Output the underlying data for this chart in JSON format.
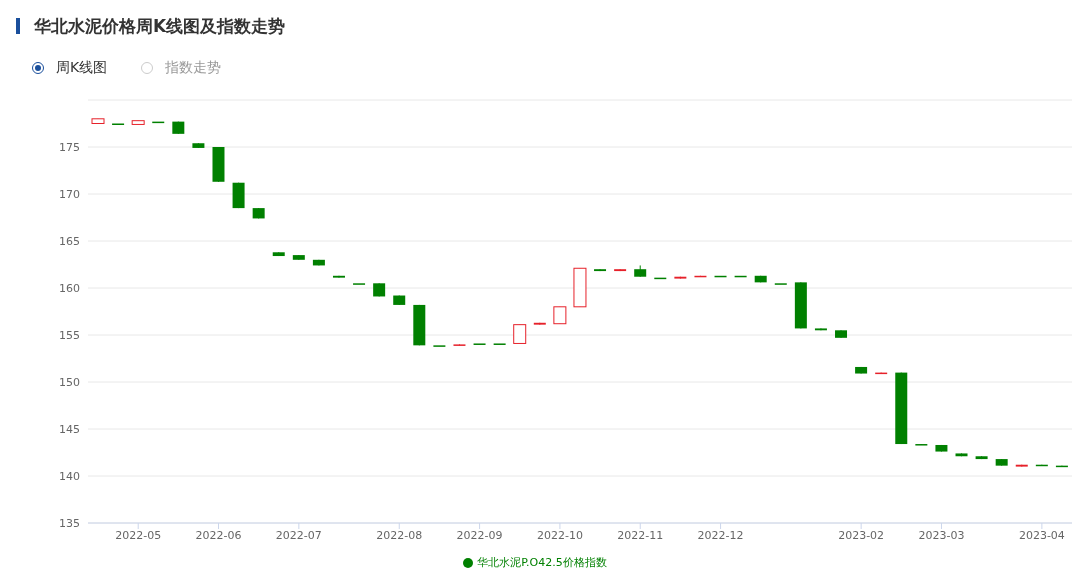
{
  "chart_data": {
    "type": "candlestick",
    "title": "华北水泥价格周K线图及指数走势",
    "annotations": [
      "周K线图",
      "指数走势"
    ],
    "categories": [
      null,
      null,
      "2022-05",
      null,
      null,
      null,
      "2022-06",
      null,
      null,
      null,
      "2022-07",
      null,
      null,
      null,
      null,
      "2022-08",
      null,
      null,
      null,
      "2022-09",
      null,
      null,
      null,
      "2022-10",
      null,
      null,
      null,
      "2022-11",
      null,
      null,
      null,
      "2022-12",
      null,
      null,
      null,
      null,
      null,
      null,
      "2023-02",
      null,
      null,
      null,
      "2023-03",
      null,
      null,
      null,
      null,
      "2023-04",
      null
    ],
    "series": [
      {
        "name": "华北水泥P.O42.5价格指数",
        "color": "#008000",
        "ohlc": [
          [
            177.5,
            178.0,
            177.5,
            178.0
          ],
          [
            177.5,
            177.5,
            177.5,
            177.5
          ],
          [
            177.4,
            177.8,
            177.4,
            177.8
          ],
          [
            177.7,
            177.7,
            177.7,
            177.7
          ],
          [
            177.7,
            177.7,
            176.4,
            176.4
          ],
          [
            175.4,
            175.4,
            174.9,
            174.9
          ],
          [
            175.0,
            175.0,
            171.3,
            171.3
          ],
          [
            171.2,
            171.2,
            168.5,
            168.5
          ],
          [
            168.5,
            168.5,
            167.4,
            167.4
          ],
          [
            163.8,
            163.8,
            163.4,
            163.4
          ],
          [
            163.5,
            163.5,
            163.0,
            163.0
          ],
          [
            163.0,
            163.0,
            162.4,
            162.4
          ],
          [
            161.3,
            161.3,
            161.1,
            161.1
          ],
          [
            160.5,
            160.5,
            160.5,
            160.5
          ],
          [
            160.5,
            160.5,
            159.1,
            159.1
          ],
          [
            159.2,
            159.2,
            158.2,
            158.2
          ],
          [
            158.2,
            158.2,
            153.9,
            153.9
          ],
          [
            153.9,
            153.9,
            153.9,
            153.9
          ],
          [
            153.9,
            154.0,
            153.9,
            154.0
          ],
          [
            154.1,
            154.1,
            154.1,
            154.1
          ],
          [
            154.1,
            154.1,
            154.1,
            154.1
          ],
          [
            154.1,
            156.1,
            154.1,
            156.1
          ],
          [
            156.1,
            156.3,
            156.1,
            156.3
          ],
          [
            156.2,
            158.0,
            156.2,
            158.0
          ],
          [
            158.0,
            162.1,
            158.0,
            162.1
          ],
          [
            162.0,
            162.0,
            161.8,
            161.8
          ],
          [
            161.8,
            162.0,
            161.8,
            162.0
          ],
          [
            162.0,
            162.4,
            161.2,
            161.2
          ],
          [
            161.1,
            161.1,
            161.1,
            161.1
          ],
          [
            161.0,
            161.2,
            161.0,
            161.2
          ],
          [
            161.2,
            161.3,
            161.2,
            161.3
          ],
          [
            161.3,
            161.3,
            161.3,
            161.3
          ],
          [
            161.3,
            161.3,
            161.3,
            161.3
          ],
          [
            161.3,
            161.3,
            160.6,
            160.6
          ],
          [
            160.5,
            160.5,
            160.5,
            160.5
          ],
          [
            160.6,
            160.6,
            155.7,
            155.7
          ],
          [
            155.7,
            155.7,
            155.5,
            155.5
          ],
          [
            155.5,
            155.5,
            154.7,
            154.7
          ],
          [
            151.6,
            151.6,
            150.9,
            150.9
          ],
          [
            150.9,
            151.0,
            150.9,
            151.0
          ],
          [
            151.0,
            151.0,
            143.4,
            143.4
          ],
          [
            143.4,
            143.4,
            143.3,
            143.3
          ],
          [
            143.3,
            143.3,
            142.6,
            142.6
          ],
          [
            142.4,
            142.4,
            142.1,
            142.1
          ],
          [
            142.1,
            142.1,
            141.8,
            141.8
          ],
          [
            141.8,
            141.8,
            141.1,
            141.1
          ],
          [
            141.0,
            141.2,
            141.0,
            141.2
          ],
          [
            141.2,
            141.2,
            141.1,
            141.1
          ],
          [
            141.1,
            141.1,
            141.0,
            141.0
          ]
        ],
        "colors": [
          "#e6212a",
          "#008000",
          "#e6212a",
          "#008000",
          "#008000",
          "#008000",
          "#008000",
          "#008000",
          "#008000",
          "#008000",
          "#008000",
          "#008000",
          "#008000",
          "#008000",
          "#008000",
          "#008000",
          "#008000",
          "#008000",
          "#e6212a",
          "#008000",
          "#008000",
          "#e6212a",
          "#e6212a",
          "#e6212a",
          "#e6212a",
          "#008000",
          "#e6212a",
          "#008000",
          "#008000",
          "#e6212a",
          "#e6212a",
          "#008000",
          "#008000",
          "#008000",
          "#008000",
          "#008000",
          "#008000",
          "#008000",
          "#008000",
          "#e6212a",
          "#008000",
          "#008000",
          "#008000",
          "#008000",
          "#008000",
          "#008000",
          "#e6212a",
          "#008000",
          "#008000"
        ]
      }
    ],
    "ylim": [
      135,
      180
    ],
    "yticks": [
      135,
      140,
      145,
      150,
      155,
      160,
      165,
      170,
      175,
      {
        "value": 180,
        "label": null
      }
    ],
    "grid": "y",
    "legend": "bottom"
  }
}
